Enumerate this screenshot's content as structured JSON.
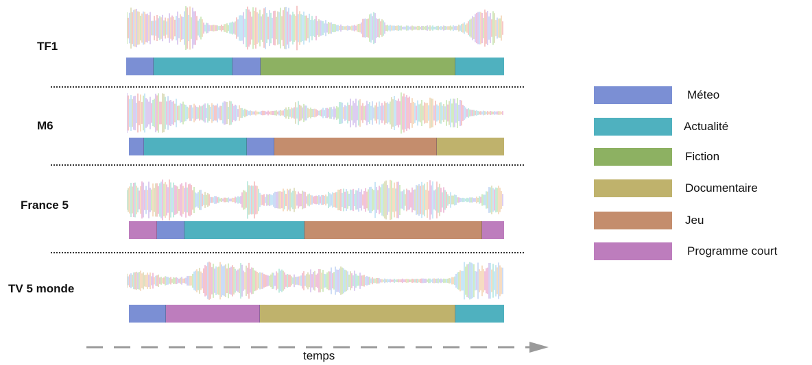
{
  "categories": [
    {
      "key": "meteo",
      "label": "Méteo",
      "color": "#7b8fd4"
    },
    {
      "key": "actualite",
      "label": "Actualité",
      "color": "#4fb1bf"
    },
    {
      "key": "fiction",
      "label": "Fiction",
      "color": "#8db162"
    },
    {
      "key": "documentaire",
      "label": "Documentaire",
      "color": "#bfb26c"
    },
    {
      "key": "jeu",
      "label": "Jeu",
      "color": "#c48d6d"
    },
    {
      "key": "programme_court",
      "label": "Programme court",
      "color": "#bd7dbd"
    }
  ],
  "channels": [
    {
      "name": "TF1",
      "segments": [
        {
          "cat": "meteo",
          "len": 40
        },
        {
          "cat": "actualite",
          "len": 115
        },
        {
          "cat": "meteo",
          "len": 41
        },
        {
          "cat": "fiction",
          "len": 284
        },
        {
          "cat": "actualite",
          "len": 71
        }
      ]
    },
    {
      "name": "M6",
      "segments": [
        {
          "cat": "meteo",
          "len": 22
        },
        {
          "cat": "actualite",
          "len": 150
        },
        {
          "cat": "meteo",
          "len": 40
        },
        {
          "cat": "jeu",
          "len": 237
        },
        {
          "cat": "documentaire",
          "len": 98
        }
      ]
    },
    {
      "name": "France 5",
      "segments": [
        {
          "cat": "programme_court",
          "len": 41
        },
        {
          "cat": "meteo",
          "len": 40
        },
        {
          "cat": "actualite",
          "len": 175
        },
        {
          "cat": "jeu",
          "len": 259
        },
        {
          "cat": "programme_court",
          "len": 32
        }
      ]
    },
    {
      "name": "TV 5 monde",
      "segments": [
        {
          "cat": "meteo",
          "len": 54
        },
        {
          "cat": "programme_court",
          "len": 137
        },
        {
          "cat": "documentaire",
          "len": 285
        },
        {
          "cat": "actualite",
          "len": 71
        }
      ]
    }
  ],
  "axis": {
    "label": "temps"
  }
}
